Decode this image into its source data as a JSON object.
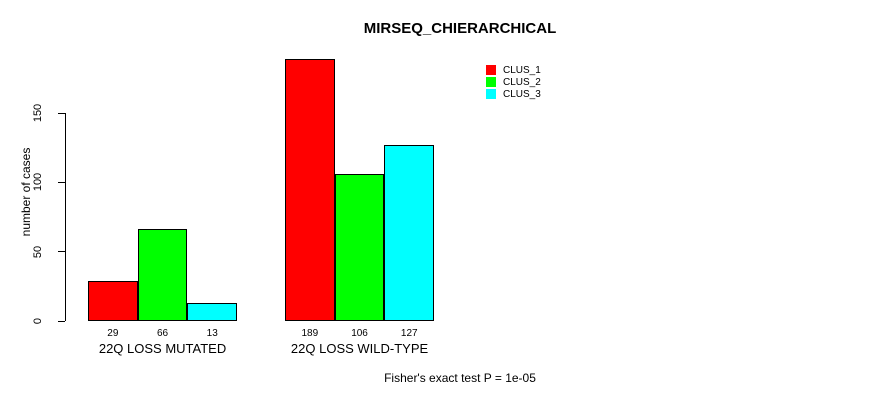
{
  "chart_data": {
    "type": "bar",
    "title": "MIRSEQ_CHIERARCHICAL",
    "ylabel": "number of cases",
    "xlabel": "",
    "categories": [
      "22Q LOSS MUTATED",
      "22Q LOSS WILD-TYPE"
    ],
    "series": [
      {
        "name": "CLUS_1",
        "color": "#ff0000",
        "values": [
          29,
          189
        ]
      },
      {
        "name": "CLUS_2",
        "color": "#00ff00",
        "values": [
          66,
          106
        ]
      },
      {
        "name": "CLUS_3",
        "color": "#00ffff",
        "values": [
          13,
          127
        ]
      }
    ],
    "yticks": [
      0,
      50,
      100,
      150
    ],
    "ylim": [
      0,
      189
    ],
    "bar_value_labels": [
      [
        "29",
        "66",
        "13"
      ],
      [
        "189",
        "106",
        "127"
      ]
    ],
    "grid": false,
    "legend_position": "top-right",
    "annotation": "Fisher's exact test P = 1e-05",
    "background": "#ffffff",
    "bar_border_color": "#000000"
  }
}
